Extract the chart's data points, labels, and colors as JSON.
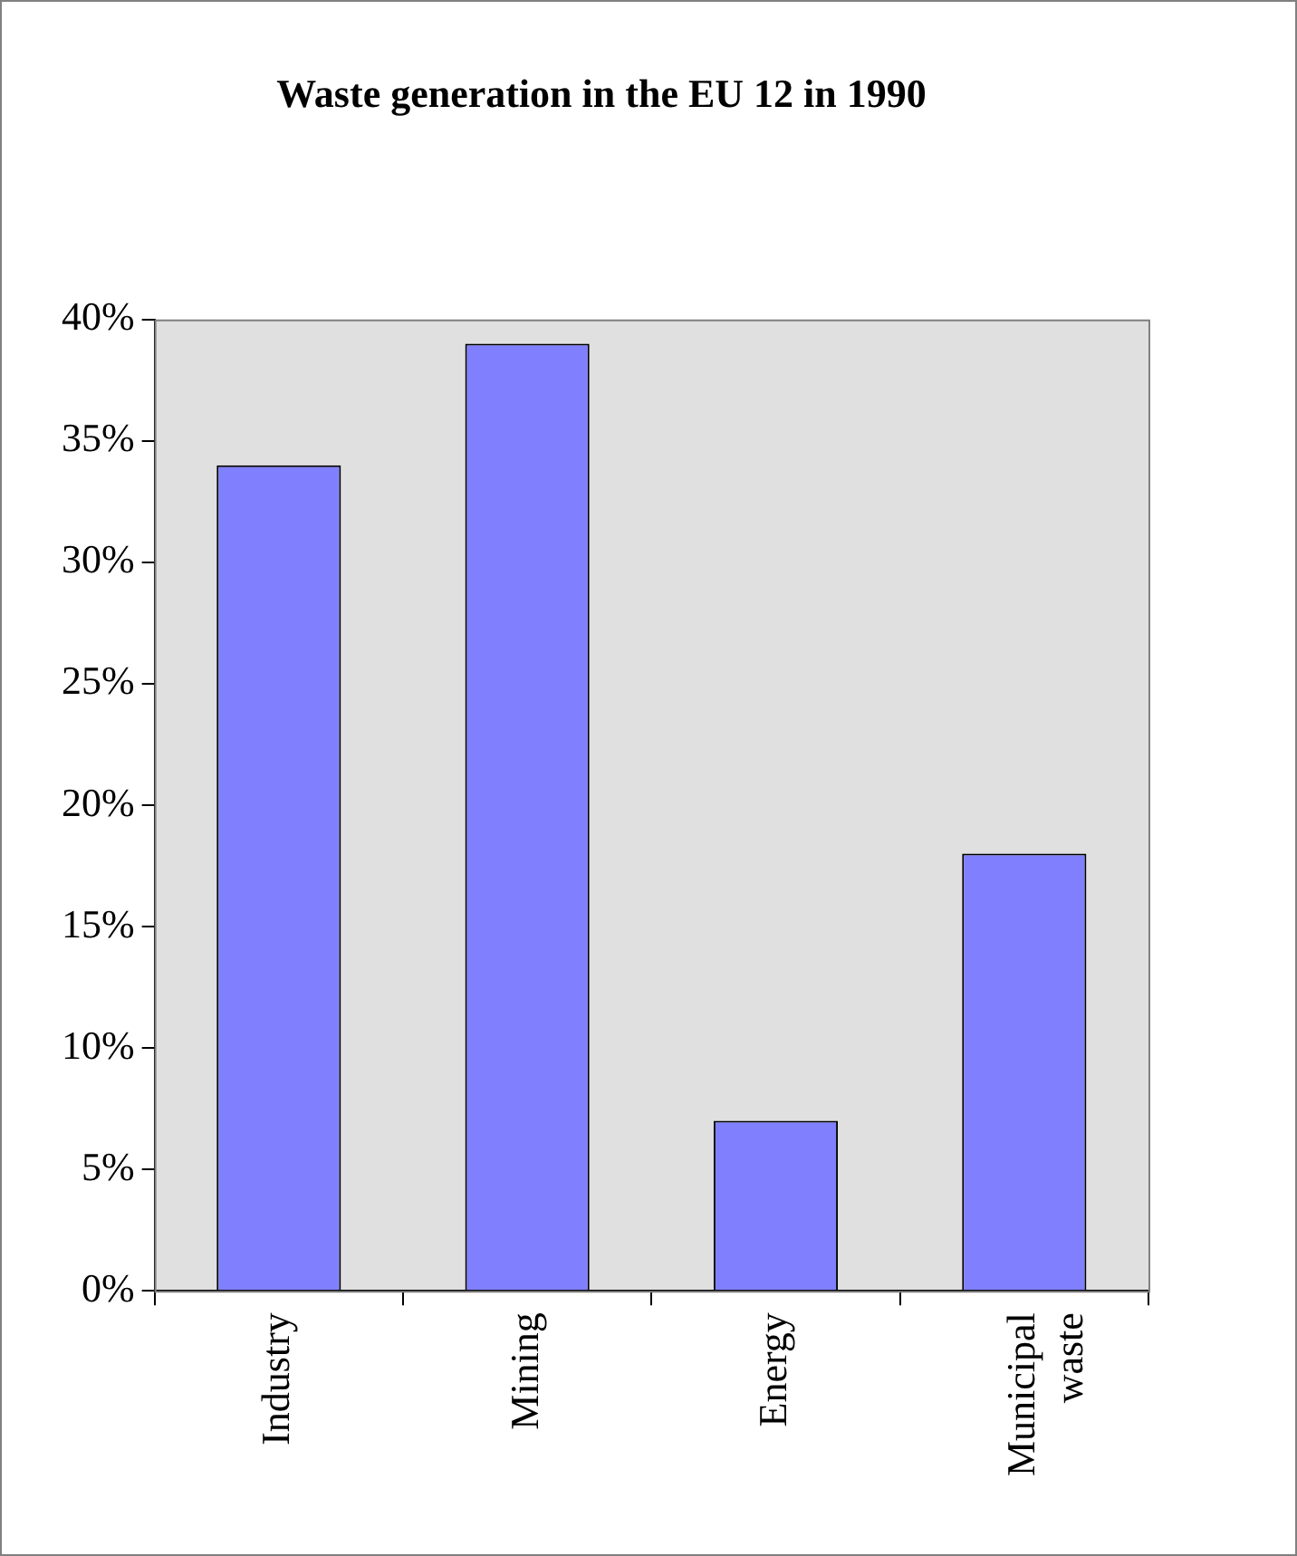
{
  "chart_data": {
    "type": "bar",
    "title": "Waste generation in the EU 12 in 1990",
    "categories": [
      "Industry",
      "Mining",
      "Energy",
      "Municipal waste"
    ],
    "values": [
      34,
      39,
      7,
      18
    ],
    "color": "#8080ff",
    "ylim": [
      0,
      40
    ],
    "yticks": [
      {
        "value": 0,
        "label": "0%"
      },
      {
        "value": 5,
        "label": "5%"
      },
      {
        "value": 10,
        "label": "10%"
      },
      {
        "value": 15,
        "label": "15%"
      },
      {
        "value": 20,
        "label": "20%"
      },
      {
        "value": 25,
        "label": "25%"
      },
      {
        "value": 30,
        "label": "30%"
      },
      {
        "value": 35,
        "label": "35%"
      },
      {
        "value": 40,
        "label": "40%"
      }
    ],
    "grid": false,
    "legend": false
  }
}
